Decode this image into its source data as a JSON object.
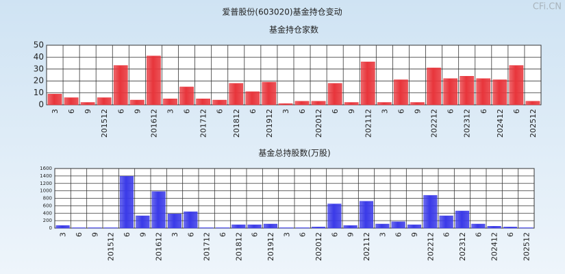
{
  "title": "爱普股份(603020)基金持仓变动",
  "watermark": "CFi.CN",
  "chart_data": [
    {
      "type": "bar",
      "title": "基金持仓家数",
      "categories": [
        "3",
        "6",
        "9",
        "201512",
        "6",
        "9",
        "201612",
        "3",
        "6",
        "201712",
        "6",
        "201812",
        "6",
        "201912",
        "3",
        "6",
        "202012",
        "6",
        "9",
        "202112",
        "3",
        "6",
        "9",
        "202212",
        "6",
        "202312",
        "6",
        "202412",
        "6",
        "202512"
      ],
      "values": [
        9,
        6,
        2,
        6,
        33,
        4,
        41,
        5,
        15,
        5,
        4,
        18,
        11,
        19,
        1,
        3,
        3,
        18,
        2,
        36,
        2,
        21,
        2,
        31,
        22,
        24,
        22,
        21,
        33,
        3
      ],
      "color": "#e8353b",
      "ylim": [
        0,
        50
      ],
      "yticks": [
        0,
        10,
        20,
        30,
        40,
        50
      ],
      "grid": true
    },
    {
      "type": "bar",
      "title": "基金总持股数(万股)",
      "categories": [
        "3",
        "6",
        "9",
        "201512",
        "6",
        "9",
        "201612",
        "3",
        "6",
        "201712",
        "6",
        "201812",
        "6",
        "201912",
        "3",
        "6",
        "202012",
        "6",
        "9",
        "202112",
        "3",
        "6",
        "9",
        "202212",
        "6",
        "202312",
        "6",
        "202412",
        "6",
        "202512"
      ],
      "values": [
        70,
        10,
        10,
        10,
        1390,
        330,
        980,
        380,
        440,
        10,
        10,
        90,
        90,
        110,
        10,
        10,
        30,
        650,
        70,
        720,
        110,
        170,
        90,
        880,
        330,
        460,
        110,
        50,
        30,
        10
      ],
      "color": "#3a3ae8",
      "ylim": [
        0,
        1600
      ],
      "yticks": [
        0,
        200,
        400,
        600,
        800,
        1000,
        1200,
        1400,
        1600
      ],
      "grid": true
    }
  ]
}
